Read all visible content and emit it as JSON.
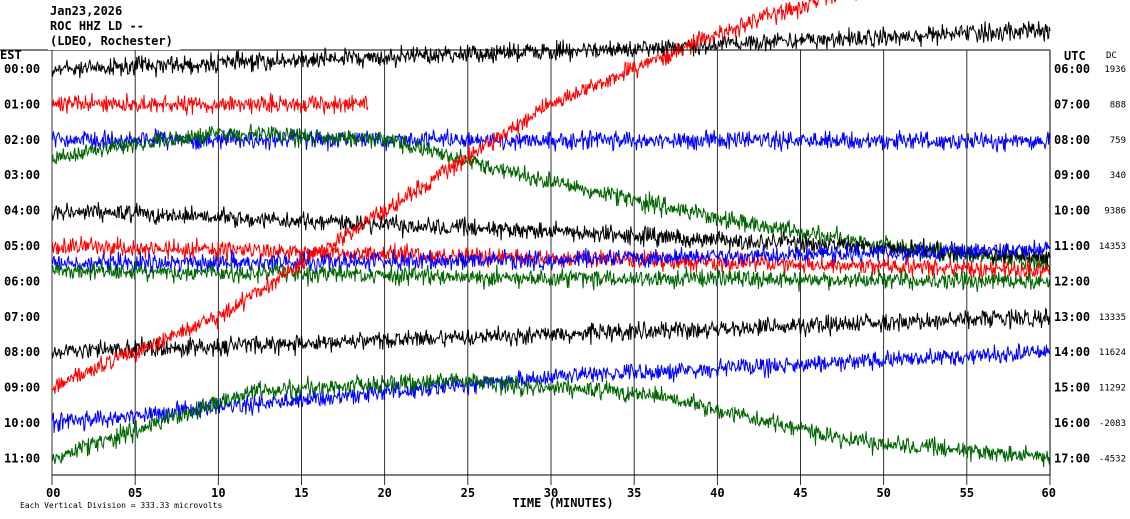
{
  "header": {
    "date": "Jan23,2026",
    "station": "ROC HHZ LD --",
    "network": "(LDEO, Rochester)"
  },
  "left_axis_title": "EST",
  "right_axis_title": "UTC",
  "dc_title": "DC",
  "footer": {
    "scale_text": "Each Vertical Division = 333.33 microvolts"
  },
  "chart_data": {
    "type": "line",
    "title": "",
    "xlabel": "TIME (MINUTES)",
    "xlim": [
      0,
      60
    ],
    "x_ticks": [
      "00",
      "05",
      "10",
      "15",
      "20",
      "25",
      "30",
      "35",
      "40",
      "45",
      "50",
      "55",
      "60"
    ],
    "gridlines": "vertical",
    "rows": [
      {
        "est": "00:00",
        "utc": "06:00",
        "dc": "1936",
        "color": "#000000",
        "drift": [
          0.0,
          -0.5,
          -1.1
        ]
      },
      {
        "est": "01:00",
        "utc": "07:00",
        "dc": "888",
        "color": "#ff0000",
        "drift": [
          0.0,
          0.0
        ],
        "end_minute": 19
      },
      {
        "est": "02:00",
        "utc": "08:00",
        "dc": "759",
        "color": "#0000ff",
        "drift": [
          0.0,
          0.0,
          0.05
        ]
      },
      {
        "est": "03:00",
        "utc": "09:00",
        "dc": "340",
        "color": "#006400",
        "drift": [
          -0.5,
          -1.2,
          -1.0,
          0.2,
          1.2,
          2.0,
          2.5
        ]
      },
      {
        "est": "04:00",
        "utc": "10:00",
        "dc": "9386",
        "color": "#000000",
        "drift": [
          0.0,
          0.6,
          1.3
        ]
      },
      {
        "est": "05:00",
        "utc": "11:00",
        "dc": "14353",
        "color": "#ff0000",
        "drift": [
          0.0,
          0.35,
          0.7
        ]
      },
      {
        "est": "06:00",
        "utc": "12:00",
        "dc": "",
        "color": "#0000ff",
        "drift": [
          -0.5,
          -0.6,
          -0.9
        ]
      },
      {
        "est": "07:00",
        "utc": "13:00",
        "dc": "13335",
        "color": "#006400",
        "drift": [
          -1.3,
          -1.1,
          -1.0
        ]
      },
      {
        "est": "08:00",
        "utc": "14:00",
        "dc": "11624",
        "color": "#000000",
        "drift": [
          0.0,
          -0.5,
          -1.0
        ]
      },
      {
        "est": "09:00",
        "utc": "15:00",
        "dc": "11292",
        "color": "#ff0000",
        "drift": [
          0.0,
          -2.0,
          -5.0,
          -8.0,
          -10.0,
          -11.5,
          -12.0
        ]
      },
      {
        "est": "10:00",
        "utc": "16:00",
        "dc": "-2083",
        "color": "#0000ff",
        "drift": [
          0.0,
          -1.3,
          -2.0
        ]
      },
      {
        "est": "11:00",
        "utc": "17:00",
        "dc": "-4532",
        "color": "#006400",
        "drift": [
          0.0,
          -1.9,
          -2.2,
          -1.8,
          -0.5,
          0.0
        ]
      }
    ]
  }
}
